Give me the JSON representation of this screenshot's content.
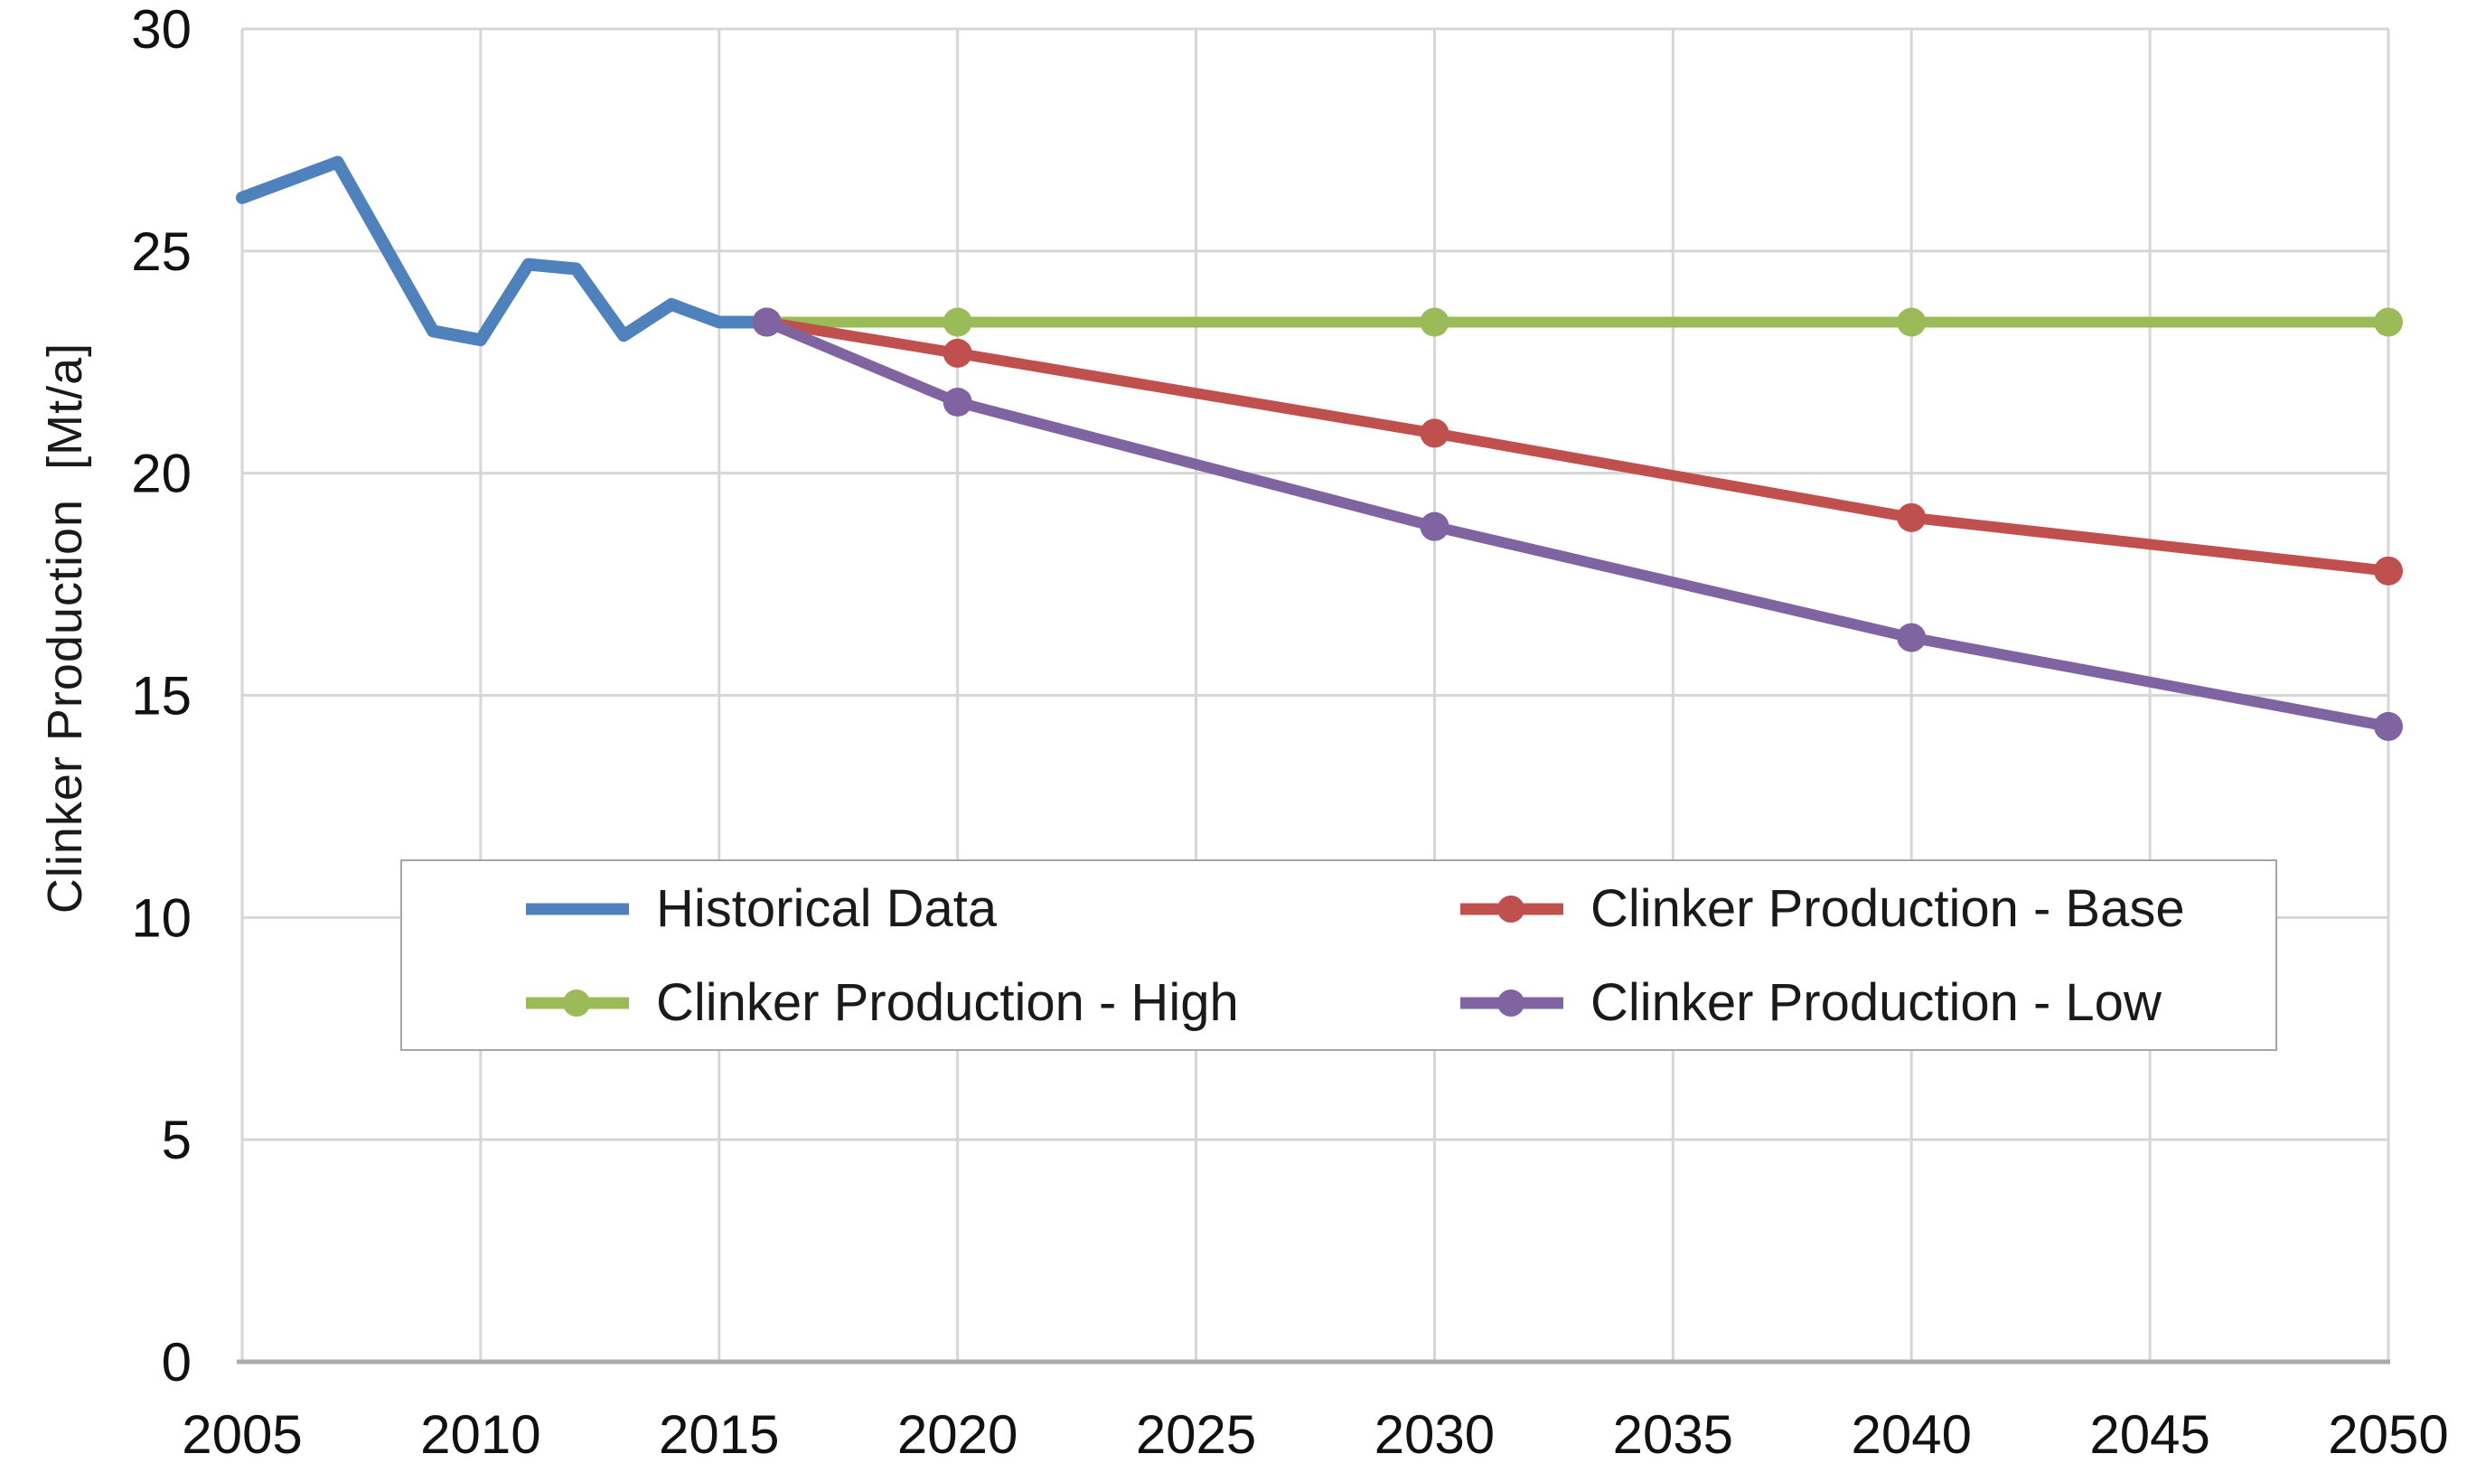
{
  "chart_data": {
    "type": "line",
    "title": "",
    "xlabel": "",
    "ylabel": "Clinker Production  [Mt/a]",
    "xlim": [
      2005,
      2050
    ],
    "ylim": [
      0,
      30
    ],
    "x_ticks": [
      2005,
      2010,
      2015,
      2020,
      2025,
      2030,
      2035,
      2040,
      2045,
      2050
    ],
    "y_ticks": [
      0,
      5,
      10,
      15,
      20,
      25,
      30
    ],
    "grid": true,
    "legend_position": "inside-lower-middle",
    "series": [
      {
        "name": "Historical Data",
        "color": "#4F81BD",
        "marker": false,
        "x": [
          2005,
          2006,
          2007,
          2008,
          2009,
          2010,
          2011,
          2012,
          2013,
          2014,
          2015,
          2016
        ],
        "values": [
          26.2,
          26.6,
          27.0,
          25.1,
          23.2,
          23.0,
          24.7,
          24.6,
          23.1,
          23.8,
          23.4,
          23.4
        ]
      },
      {
        "name": "Clinker Production - High",
        "color": "#9BBB59",
        "marker": true,
        "x": [
          2016,
          2020,
          2030,
          2040,
          2050
        ],
        "values": [
          23.4,
          23.4,
          23.4,
          23.4,
          23.4
        ]
      },
      {
        "name": "Clinker Production - Base",
        "color": "#C0504D",
        "marker": true,
        "x": [
          2016,
          2020,
          2030,
          2040,
          2050
        ],
        "values": [
          23.4,
          22.7,
          20.9,
          19.0,
          17.8
        ]
      },
      {
        "name": "Clinker Production - Low",
        "color": "#8064A2",
        "marker": true,
        "x": [
          2016,
          2020,
          2030,
          2040,
          2050
        ],
        "values": [
          23.4,
          21.6,
          18.8,
          16.3,
          14.3
        ]
      }
    ],
    "colors": {
      "gridline": "#D6D6D6",
      "axis_line": "#ABABAB",
      "tick_text": "#111111"
    }
  }
}
